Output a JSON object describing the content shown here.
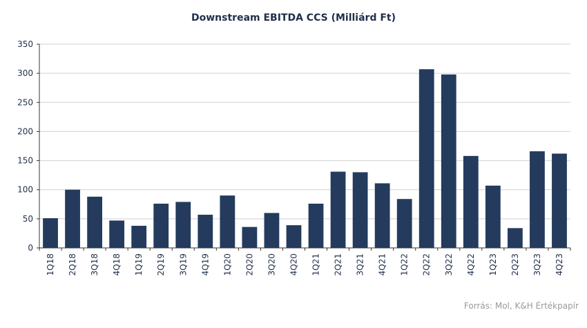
{
  "chart_data": {
    "type": "bar",
    "title": "Downstream EBITDA CCS (Milliárd Ft)",
    "categories": [
      "1Q18",
      "2Q18",
      "3Q18",
      "4Q18",
      "1Q19",
      "2Q19",
      "3Q19",
      "4Q19",
      "1Q20",
      "2Q20",
      "3Q20",
      "4Q20",
      "1Q21",
      "2Q21",
      "3Q21",
      "4Q21",
      "1Q22",
      "2Q22",
      "3Q22",
      "4Q22",
      "1Q23",
      "2Q23",
      "3Q23",
      "4Q23"
    ],
    "values": [
      51,
      100,
      88,
      47,
      38,
      76,
      79,
      57,
      90,
      36,
      60,
      39,
      76,
      131,
      130,
      111,
      84,
      307,
      298,
      158,
      107,
      34,
      166,
      162
    ],
    "ylim": [
      0,
      350
    ],
    "yticks": [
      0,
      50,
      100,
      150,
      200,
      250,
      300,
      350
    ],
    "grid": true,
    "bar_color": "#243b5e",
    "grid_color": "#d0d0d0",
    "source": "Forrás: Mol, K&H Értékpapír"
  }
}
